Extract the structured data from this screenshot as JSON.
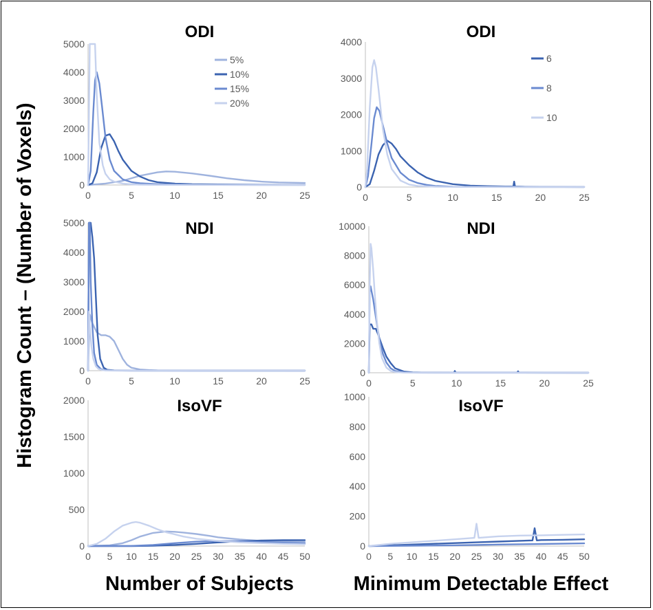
{
  "figure": {
    "ylabel": "Histogram Count – (Number of Voxels)",
    "xlabels": [
      "Number of Subjects",
      "Minimum Detectable Effect"
    ],
    "colors": [
      "#9fb3de",
      "#3b63b0",
      "#6a8ad0",
      "#c6d2ee"
    ]
  },
  "chart_data": [
    {
      "type": "line",
      "title": "ODI",
      "xlabel": "",
      "ylabel": "",
      "xlim": [
        0,
        25
      ],
      "ylim": [
        0,
        5000
      ],
      "xticks": [
        0,
        5,
        10,
        15,
        20,
        25
      ],
      "yticks": [
        0,
        1000,
        2000,
        3000,
        4000,
        5000
      ],
      "legend": {
        "position": "top-right",
        "entries": [
          "5%",
          "10%",
          "15%",
          "20%"
        ]
      },
      "series": [
        {
          "name": "5%",
          "color": "#9fb3de",
          "x": [
            0,
            2,
            4,
            6,
            8,
            9,
            10,
            12,
            14,
            16,
            18,
            20,
            22,
            25
          ],
          "y": [
            0,
            50,
            150,
            330,
            450,
            480,
            470,
            410,
            330,
            240,
            170,
            120,
            90,
            70
          ]
        },
        {
          "name": "10%",
          "color": "#3b63b0",
          "x": [
            0,
            0.5,
            1,
            1.5,
            2,
            2.5,
            3,
            3.5,
            4,
            5,
            6,
            7,
            8,
            10,
            12,
            15,
            20,
            25
          ],
          "y": [
            0,
            60,
            450,
            1300,
            1750,
            1800,
            1550,
            1200,
            900,
            500,
            300,
            170,
            100,
            50,
            30,
            20,
            10,
            5
          ]
        },
        {
          "name": "15%",
          "color": "#6a8ad0",
          "x": [
            0,
            0.3,
            0.6,
            0.8,
            1,
            1.3,
            1.6,
            2,
            2.5,
            3,
            4,
            5,
            6,
            8,
            10,
            12,
            15,
            20,
            25
          ],
          "y": [
            0,
            500,
            2600,
            3700,
            4000,
            3600,
            2800,
            1700,
            900,
            500,
            200,
            100,
            60,
            30,
            15,
            10,
            5,
            3,
            2
          ]
        },
        {
          "name": "20%",
          "color": "#c6d2ee",
          "x": [
            0,
            0.2,
            0.35,
            0.5,
            0.8,
            1.0,
            1.3,
            1.7,
            2,
            2.5,
            3,
            4,
            5,
            6,
            8,
            10,
            15,
            25
          ],
          "y": [
            0,
            5000,
            5000,
            5000,
            5000,
            3200,
            1500,
            700,
            400,
            200,
            120,
            50,
            25,
            12,
            6,
            3,
            2,
            1
          ]
        }
      ]
    },
    {
      "type": "line",
      "title": "ODI",
      "xlabel": "",
      "ylabel": "",
      "xlim": [
        0,
        25
      ],
      "ylim": [
        0,
        4000
      ],
      "xticks": [
        0,
        5,
        10,
        15,
        20,
        25
      ],
      "yticks": [
        0,
        1000,
        2000,
        3000,
        4000
      ],
      "legend": {
        "position": "top-right",
        "entries": [
          "6",
          "8",
          "10"
        ]
      },
      "series": [
        {
          "name": "6",
          "color": "#3b63b0",
          "x": [
            0,
            0.5,
            1,
            1.5,
            2,
            2.5,
            3,
            3.5,
            4,
            5,
            6,
            7,
            8,
            10,
            12,
            14,
            16,
            16.9,
            17,
            17.1,
            18,
            20,
            25
          ],
          "y": [
            0,
            80,
            450,
            900,
            1150,
            1280,
            1200,
            1050,
            850,
            600,
            400,
            260,
            170,
            80,
            40,
            25,
            15,
            15,
            150,
            15,
            10,
            5,
            2
          ]
        },
        {
          "name": "8",
          "color": "#6a8ad0",
          "x": [
            0,
            0.3,
            0.7,
            1,
            1.3,
            1.6,
            2,
            2.5,
            3,
            4,
            5,
            6,
            7,
            8,
            10,
            12,
            15,
            20,
            25
          ],
          "y": [
            0,
            300,
            1200,
            1900,
            2200,
            2100,
            1700,
            1200,
            800,
            400,
            200,
            110,
            60,
            30,
            12,
            6,
            3,
            2,
            1
          ]
        },
        {
          "name": "10",
          "color": "#c6d2ee",
          "x": [
            0,
            0.2,
            0.5,
            0.8,
            1.0,
            1.2,
            1.5,
            2,
            2.5,
            3,
            4,
            5,
            6,
            8,
            10,
            15,
            25
          ],
          "y": [
            0,
            500,
            2200,
            3300,
            3500,
            3300,
            2700,
            1600,
            900,
            500,
            180,
            70,
            30,
            10,
            5,
            2,
            1
          ]
        }
      ]
    },
    {
      "type": "line",
      "title": "NDI",
      "xlabel": "",
      "ylabel": "",
      "xlim": [
        0,
        25
      ],
      "ylim": [
        0,
        5000
      ],
      "xticks": [
        0,
        5,
        10,
        15,
        20,
        25
      ],
      "yticks": [
        0,
        1000,
        2000,
        3000,
        4000,
        5000
      ],
      "series": [
        {
          "color": "#9fb3de",
          "x": [
            0,
            0.2,
            0.5,
            1,
            1.5,
            2,
            2.5,
            3,
            3.5,
            4,
            4.5,
            5,
            6,
            7,
            8,
            10,
            15,
            20,
            25
          ],
          "y": [
            0,
            1900,
            1600,
            1300,
            1200,
            1200,
            1150,
            1000,
            700,
            400,
            200,
            100,
            40,
            20,
            10,
            5,
            3,
            2,
            1
          ]
        },
        {
          "color": "#3b63b0",
          "x": [
            0,
            0.1,
            0.3,
            0.5,
            0.7,
            0.9,
            1.1,
            1.4,
            1.8,
            2.2,
            3,
            4,
            5,
            8,
            12,
            16,
            25
          ],
          "y": [
            0,
            5000,
            5000,
            4500,
            3800,
            2500,
            1200,
            400,
            100,
            30,
            10,
            5,
            3,
            2,
            1,
            1,
            1
          ]
        },
        {
          "color": "#6a8ad0",
          "x": [
            0,
            0.1,
            0.2,
            0.3,
            0.5,
            0.7,
            1.0,
            1.5,
            2,
            3,
            5,
            10,
            25
          ],
          "y": [
            0,
            5000,
            5000,
            3000,
            1500,
            600,
            200,
            50,
            20,
            5,
            2,
            1,
            0
          ]
        },
        {
          "color": "#c6d2ee",
          "x": [
            0,
            0.1,
            0.2,
            0.4,
            0.6,
            0.9,
            1.2,
            1.6,
            2,
            3,
            5,
            10,
            25
          ],
          "y": [
            0,
            2000,
            1500,
            800,
            400,
            150,
            60,
            20,
            8,
            3,
            1,
            0,
            0
          ]
        }
      ]
    },
    {
      "type": "line",
      "title": "NDI",
      "xlabel": "",
      "ylabel": "",
      "xlim": [
        0,
        25
      ],
      "ylim": [
        0,
        10000
      ],
      "xticks": [
        0,
        5,
        10,
        15,
        20,
        25
      ],
      "yticks": [
        0,
        2000,
        4000,
        6000,
        8000,
        10000
      ],
      "series": [
        {
          "color": "#3b63b0",
          "x": [
            0,
            0.1,
            0.3,
            0.5,
            0.8,
            1.0,
            1.3,
            1.6,
            2,
            2.5,
            3,
            4,
            5,
            6,
            9.7,
            9.8,
            9.9,
            16.9,
            17,
            17.1,
            20,
            25
          ],
          "y": [
            0,
            3300,
            3300,
            3000,
            3000,
            2700,
            2200,
            1700,
            1100,
            650,
            300,
            80,
            30,
            15,
            10,
            120,
            10,
            10,
            100,
            10,
            5,
            2
          ]
        },
        {
          "color": "#6a8ad0",
          "x": [
            0,
            0.1,
            0.2,
            0.3,
            0.5,
            0.7,
            1.0,
            1.3,
            1.6,
            2,
            2.5,
            3,
            4,
            5,
            8,
            25
          ],
          "y": [
            0,
            5500,
            5900,
            5600,
            5000,
            4200,
            3000,
            2000,
            1300,
            700,
            300,
            120,
            30,
            10,
            3,
            0
          ]
        },
        {
          "color": "#c6d2ee",
          "x": [
            0,
            0.1,
            0.2,
            0.3,
            0.5,
            0.7,
            0.9,
            1.2,
            1.5,
            2,
            2.5,
            3,
            4,
            6,
            25
          ],
          "y": [
            0,
            6000,
            8800,
            8500,
            7000,
            5200,
            3600,
            2000,
            1000,
            350,
            120,
            50,
            10,
            2,
            0
          ]
        }
      ]
    },
    {
      "type": "line",
      "title": "IsoVF",
      "xlabel": "",
      "ylabel": "",
      "xlim": [
        0,
        50
      ],
      "ylim": [
        0,
        2000
      ],
      "xticks": [
        0,
        5,
        10,
        15,
        20,
        25,
        30,
        35,
        40,
        45,
        50
      ],
      "yticks": [
        0,
        500,
        1000,
        1500,
        2000
      ],
      "series": [
        {
          "color": "#9fb3de",
          "x": [
            0,
            5,
            8,
            10,
            12,
            15,
            18,
            20,
            22,
            25,
            28,
            30,
            35,
            40,
            45,
            50
          ],
          "y": [
            0,
            10,
            40,
            80,
            130,
            180,
            200,
            195,
            185,
            165,
            140,
            120,
            90,
            70,
            60,
            55
          ]
        },
        {
          "color": "#3b63b0",
          "x": [
            0,
            10,
            15,
            20,
            25,
            30,
            35,
            40,
            45,
            50
          ],
          "y": [
            0,
            0,
            5,
            15,
            30,
            50,
            65,
            75,
            80,
            80
          ]
        },
        {
          "color": "#6a8ad0",
          "x": [
            0,
            10,
            15,
            20,
            25,
            30,
            35,
            40,
            45,
            50
          ],
          "y": [
            0,
            2,
            15,
            40,
            60,
            70,
            65,
            55,
            45,
            35
          ]
        },
        {
          "color": "#c6d2ee",
          "x": [
            0,
            2,
            4,
            6,
            8,
            10,
            11,
            12,
            14,
            16,
            18,
            20,
            22,
            25,
            30,
            35,
            40,
            45,
            50
          ],
          "y": [
            0,
            30,
            100,
            200,
            280,
            320,
            330,
            320,
            280,
            230,
            190,
            160,
            130,
            100,
            70,
            50,
            40,
            30,
            25
          ]
        }
      ]
    },
    {
      "type": "line",
      "title": "IsoVF",
      "xlabel": "",
      "ylabel": "",
      "xlim": [
        0,
        50
      ],
      "ylim": [
        0,
        1000
      ],
      "xticks": [
        0,
        5,
        10,
        15,
        20,
        25,
        30,
        35,
        40,
        45,
        50
      ],
      "yticks": [
        0,
        200,
        400,
        600,
        800,
        1000
      ],
      "series": [
        {
          "color": "#3b63b0",
          "x": [
            0,
            5,
            10,
            15,
            20,
            25,
            30,
            35,
            38,
            38.5,
            39,
            40,
            45,
            50
          ],
          "y": [
            0,
            5,
            10,
            15,
            20,
            25,
            30,
            35,
            38,
            120,
            38,
            40,
            42,
            45
          ]
        },
        {
          "color": "#6a8ad0",
          "x": [
            0,
            10,
            20,
            30,
            40,
            50
          ],
          "y": [
            0,
            2,
            5,
            10,
            14,
            18
          ]
        },
        {
          "color": "#c6d2ee",
          "x": [
            0,
            5,
            10,
            15,
            20,
            24.5,
            25,
            25.5,
            30,
            35,
            40,
            45,
            50
          ],
          "y": [
            0,
            15,
            25,
            35,
            45,
            55,
            150,
            55,
            65,
            70,
            72,
            75,
            78
          ]
        }
      ]
    }
  ]
}
